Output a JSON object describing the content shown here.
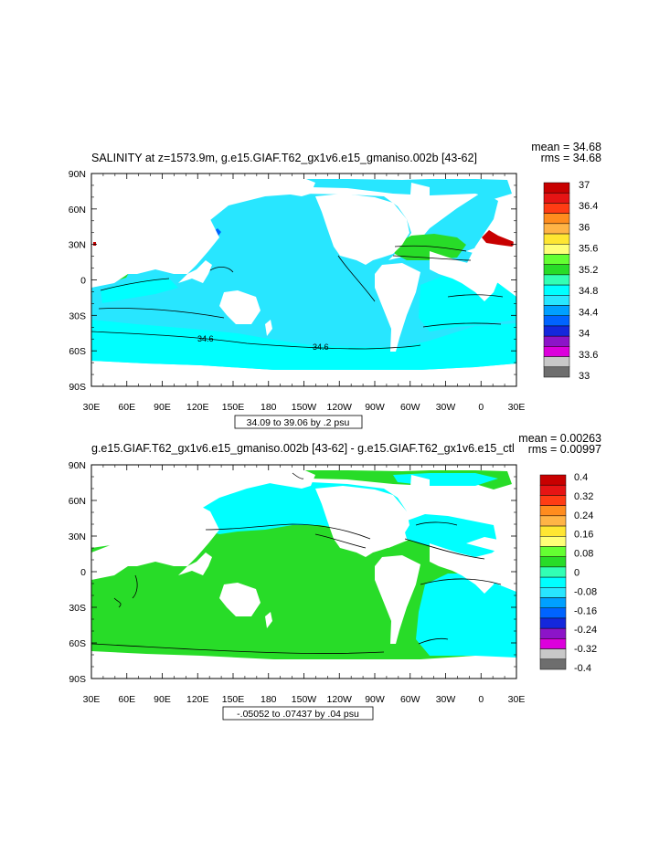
{
  "panels": [
    {
      "title": "SALINITY at z=1573.9m, g.e15.GIAF.T62_gx1v6.e15_gmaniso.002b [43-62]",
      "mean": "mean = 34.68",
      "rms": "rms = 34.68",
      "range": "34.09 to 39.06 by .2 psu",
      "contour_labels": [
        "34.6",
        "34.6"
      ],
      "colorbar": {
        "labels": [
          "37",
          "36.4",
          "36",
          "35.6",
          "35.2",
          "34.8",
          "34.4",
          "34",
          "33.6",
          "33"
        ],
        "colors": [
          "#c80000",
          "#e61414",
          "#ff3c14",
          "#ff8c1e",
          "#ffb446",
          "#ffe632",
          "#ffff78",
          "#64ff32",
          "#28dc28",
          "#32ffb4",
          "#00ffff",
          "#28e6ff",
          "#00a0ff",
          "#0064ff",
          "#1428dc",
          "#8c14c8",
          "#dc00dc",
          "#c8c8c8",
          "#6e6e6e"
        ]
      }
    },
    {
      "title": "g.e15.GIAF.T62_gx1v6.e15_gmaniso.002b [43-62] - g.e15.GIAF.T62_gx1v6.e15_ctl",
      "mean": "mean = 0.00263",
      "rms": "rms = 0.00997",
      "range": "-.05052 to .07437 by .04 psu",
      "contour_labels": [],
      "colorbar": {
        "labels": [
          "0.4",
          "0.32",
          "0.24",
          "0.16",
          "0.08",
          "0",
          "-0.08",
          "-0.16",
          "-0.24",
          "-0.32",
          "-0.4"
        ],
        "colors": [
          "#c80000",
          "#e61414",
          "#ff3c14",
          "#ff8c1e",
          "#ffb446",
          "#ffe632",
          "#ffff78",
          "#64ff32",
          "#28dc28",
          "#32ffb4",
          "#00ffff",
          "#28e6ff",
          "#00a0ff",
          "#0064ff",
          "#1428dc",
          "#8c14c8",
          "#dc00dc",
          "#c8c8c8",
          "#6e6e6e"
        ]
      }
    }
  ],
  "axes": {
    "x_ticks": [
      "30E",
      "60E",
      "90E",
      "120E",
      "150E",
      "180",
      "150W",
      "120W",
      "90W",
      "60W",
      "30W",
      "0",
      "30E"
    ],
    "y_ticks": [
      "90N",
      "60N",
      "30N",
      "0",
      "30S",
      "60S",
      "90S"
    ]
  }
}
